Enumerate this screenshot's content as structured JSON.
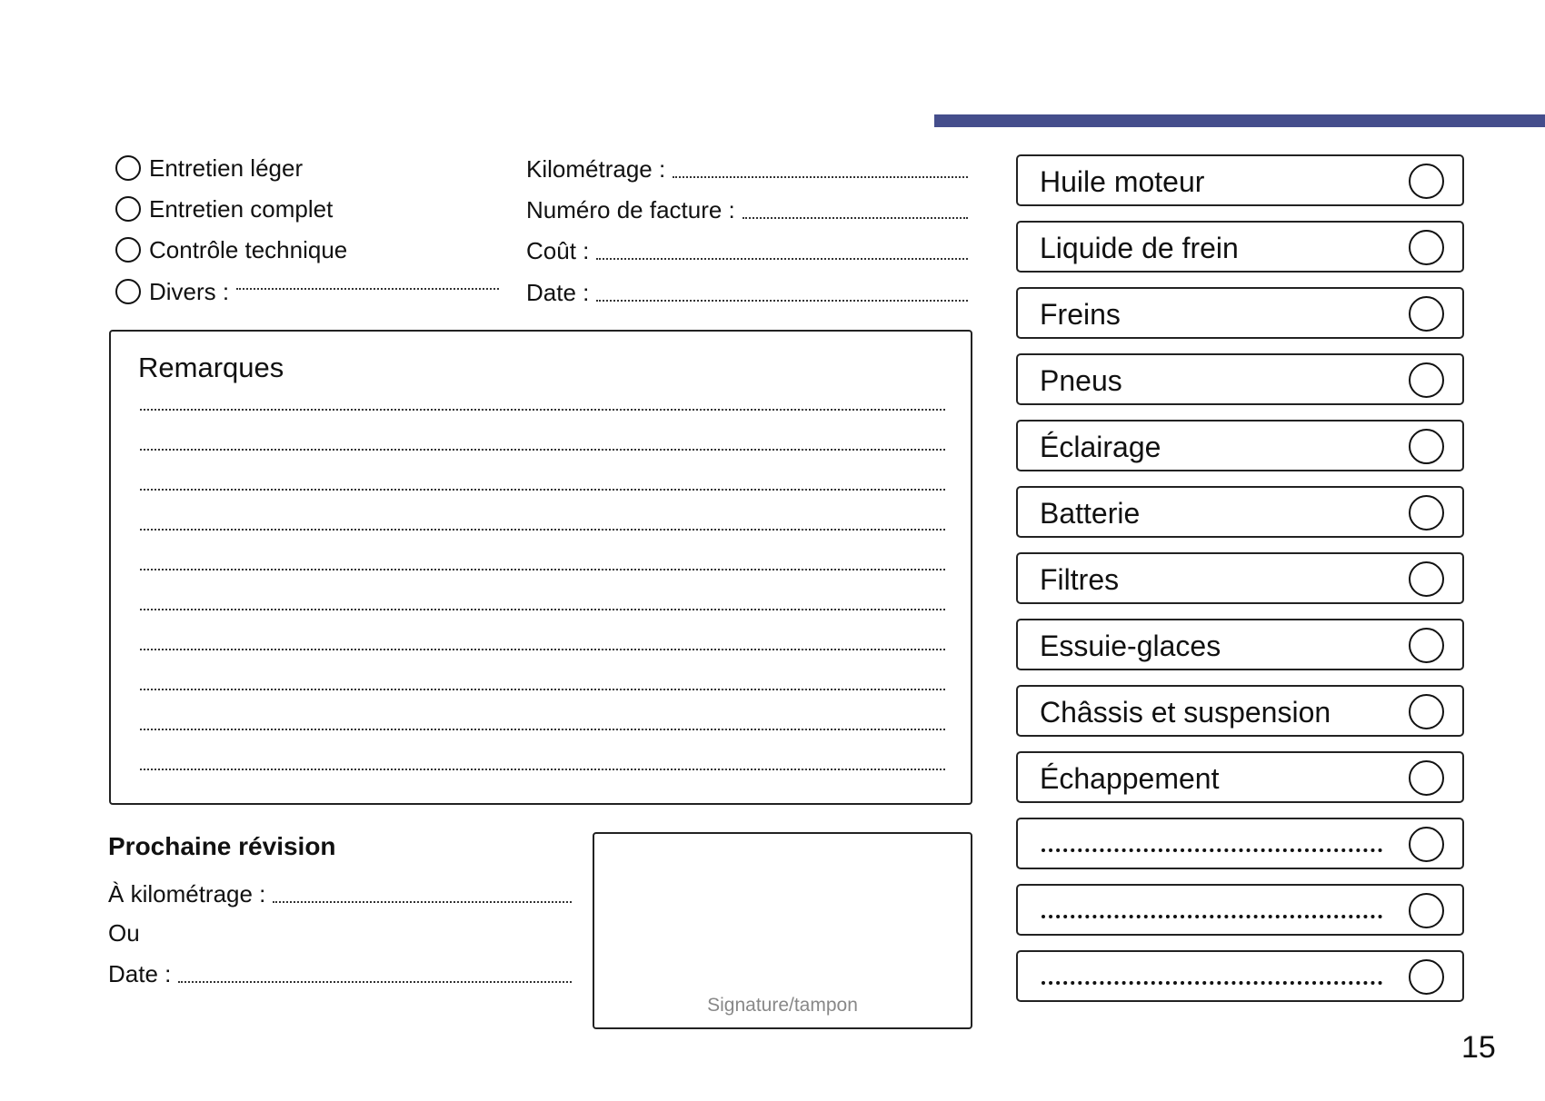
{
  "accent_color": "#454e8c",
  "service_types": [
    {
      "label": "Entretien léger"
    },
    {
      "label": "Entretien complet"
    },
    {
      "label": "Contrôle technique"
    },
    {
      "label": "Divers :"
    }
  ],
  "fields": [
    {
      "label": "Kilométrage :"
    },
    {
      "label": "Numéro de facture :"
    },
    {
      "label": "Coût :"
    },
    {
      "label": "Date :"
    }
  ],
  "remarks": {
    "title": "Remarques"
  },
  "next_service": {
    "title": "Prochaine révision",
    "mileage_label": "À kilométrage :",
    "or_label": "Ou",
    "date_label": "Date :"
  },
  "signature": {
    "label": "Signature/tampon"
  },
  "checklist": [
    {
      "label": "Huile moteur"
    },
    {
      "label": "Liquide de frein"
    },
    {
      "label": "Freins"
    },
    {
      "label": "Pneus"
    },
    {
      "label": "Éclairage"
    },
    {
      "label": "Batterie"
    },
    {
      "label": "Filtres"
    },
    {
      "label": "Essuie-glaces"
    },
    {
      "label": "Châssis et suspension"
    },
    {
      "label": "Échappement"
    },
    {
      "label": ""
    },
    {
      "label": ""
    },
    {
      "label": ""
    }
  ],
  "page_number": "15"
}
